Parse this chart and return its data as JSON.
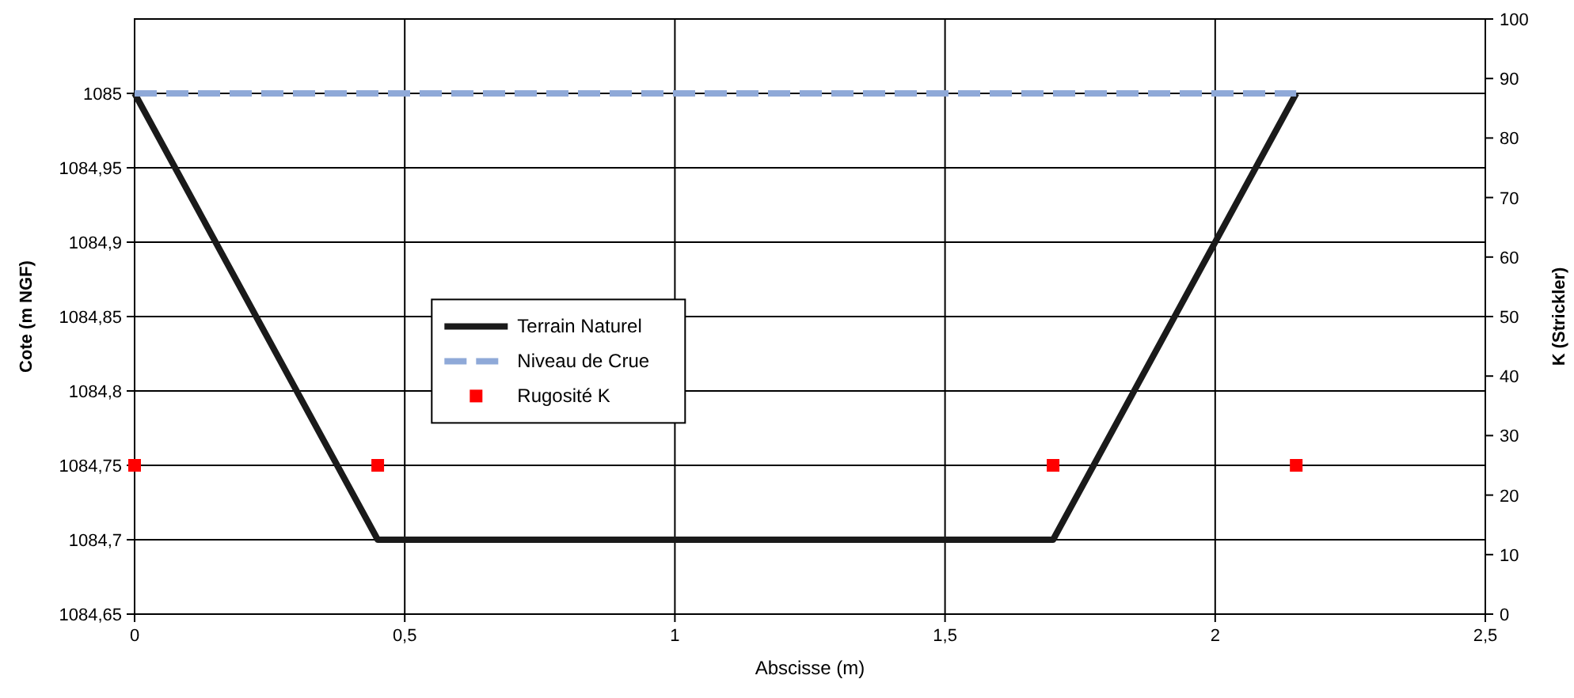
{
  "chart_data": {
    "type": "line",
    "xlabel": "Abscisse (m)",
    "ylabel": "Cote (m NGF)",
    "y2label": "K (Strickler)",
    "xlim": [
      0,
      2.5
    ],
    "xticks": [
      0,
      {
        "value": 0.5,
        "label": "0,5"
      },
      1,
      {
        "value": 1.5,
        "label": "1,5"
      },
      2,
      {
        "value": 2.5,
        "label": "2,5"
      }
    ],
    "ylim": [
      1084.65,
      1085.05
    ],
    "yticks": [
      {
        "value": 1084.65,
        "label": "1084,65"
      },
      {
        "value": 1084.7,
        "label": "1084,7"
      },
      {
        "value": 1084.75,
        "label": "1084,75"
      },
      {
        "value": 1084.8,
        "label": "1084,8"
      },
      {
        "value": 1084.85,
        "label": "1084,85"
      },
      {
        "value": 1084.9,
        "label": "1084,9"
      },
      {
        "value": 1084.95,
        "label": "1084,95"
      },
      1085
    ],
    "y2lim": [
      0,
      100
    ],
    "y2ticks": [
      0,
      10,
      20,
      30,
      40,
      50,
      60,
      70,
      80,
      90,
      100
    ],
    "grid": true,
    "legend": "center",
    "series": [
      {
        "name": "Terrain Naturel",
        "color": "#1a1a1a",
        "line_style": "solid",
        "marker": "none",
        "x": [
          0,
          0.45,
          1.7,
          2.15
        ],
        "values": [
          1085,
          1084.7,
          1084.7,
          1085
        ]
      },
      {
        "name": "Niveau de Crue",
        "color": "#8fa9d8",
        "line_style": "dashed",
        "marker": "none",
        "x": [
          0,
          2.15
        ],
        "values": [
          1085,
          1085
        ]
      },
      {
        "name": "Rugosité K",
        "type": "scatter",
        "color": "#ff0000",
        "marker": "square",
        "axis": "y2",
        "x": [
          0,
          0.45,
          1.7,
          2.15
        ],
        "values": [
          25,
          25,
          25,
          25
        ]
      }
    ]
  }
}
